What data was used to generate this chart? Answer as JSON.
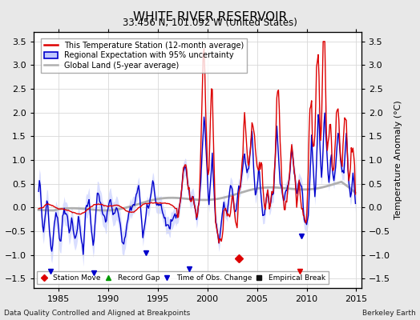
{
  "title": "WHITE RIVER RESERVOIR",
  "subtitle": "33.456 N, 101.092 W (United States)",
  "ylabel": "Temperature Anomaly (°C)",
  "xlabel_note": "Data Quality Controlled and Aligned at Breakpoints",
  "credit": "Berkeley Earth",
  "ylim": [
    -1.7,
    3.7
  ],
  "yticks": [
    -1.5,
    -1.0,
    -0.5,
    0,
    0.5,
    1.0,
    1.5,
    2.0,
    2.5,
    3.0,
    3.5
  ],
  "xlim": [
    1982.5,
    2015.5
  ],
  "xticks": [
    1985,
    1990,
    1995,
    2000,
    2005,
    2010,
    2015
  ],
  "station_color": "#dd0000",
  "regional_color": "#0000cc",
  "regional_fill_color": "#c0c8ff",
  "global_color": "#b0b0b0",
  "plot_bg": "#ffffff",
  "fig_bg": "#e8e8e8",
  "grid_color": "#d8d8d8",
  "legend_items": [
    "This Temperature Station (12-month average)",
    "Regional Expectation with 95% uncertainty",
    "Global Land (5-year average)"
  ],
  "marker_station_move_x": 2003.2,
  "marker_station_move_y": -1.08,
  "marker_tobs_positions": [
    [
      1984.2,
      -1.35
    ],
    [
      1988.6,
      -1.38
    ],
    [
      1993.8,
      -0.95
    ],
    [
      1998.2,
      -1.3
    ],
    [
      2009.5,
      -0.6
    ]
  ],
  "marker_red_spike_x": 2009.3,
  "marker_red_spike_y": -1.35
}
